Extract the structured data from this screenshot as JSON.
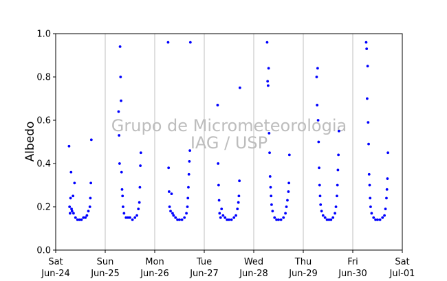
{
  "chart_data": {
    "type": "scatter",
    "ylabel": "Albedo",
    "xlabel": "",
    "ylim": [
      0,
      1.0
    ],
    "yticks": [
      0.0,
      0.2,
      0.4,
      0.6,
      0.8,
      1.0
    ],
    "ytick_labels": [
      "0.0",
      "0.2",
      "0.4",
      "0.6",
      "0.8",
      "1.0"
    ],
    "xlim_days": [
      0,
      7
    ],
    "xticks": [
      {
        "day": 0,
        "line1": "Sat",
        "line2": "Jun-24"
      },
      {
        "day": 1,
        "line1": "Sun",
        "line2": "Jun-25"
      },
      {
        "day": 2,
        "line1": "Mon",
        "line2": "Jun-26"
      },
      {
        "day": 3,
        "line1": "Tue",
        "line2": "Jun-27"
      },
      {
        "day": 4,
        "line1": "Wed",
        "line2": "Jun-28"
      },
      {
        "day": 5,
        "line1": "Thu",
        "line2": "Jun-29"
      },
      {
        "day": 6,
        "line1": "Fri",
        "line2": "Jun-30"
      },
      {
        "day": 7,
        "line1": "Sat",
        "line2": "Jul-01"
      }
    ],
    "grid": "vertical",
    "point_color": "#0000ff",
    "watermark": [
      "Grupo de Micrometeorologia",
      "IAG / USP"
    ],
    "days": [
      {
        "start": 0.27,
        "end": 0.73,
        "points": [
          [
            0.27,
            0.48
          ],
          [
            0.28,
            0.2
          ],
          [
            0.29,
            0.17
          ],
          [
            0.3,
            0.24
          ],
          [
            0.31,
            0.36
          ],
          [
            0.32,
            0.19
          ],
          [
            0.33,
            0.18
          ],
          [
            0.35,
            0.25
          ],
          [
            0.36,
            0.17
          ],
          [
            0.38,
            0.31
          ],
          [
            0.4,
            0.15
          ],
          [
            0.44,
            0.14
          ],
          [
            0.48,
            0.14
          ],
          [
            0.52,
            0.14
          ],
          [
            0.56,
            0.15
          ],
          [
            0.6,
            0.15
          ],
          [
            0.63,
            0.16
          ],
          [
            0.66,
            0.18
          ],
          [
            0.69,
            0.2
          ],
          [
            0.7,
            0.24
          ],
          [
            0.71,
            0.31
          ],
          [
            0.72,
            0.51
          ]
        ]
      },
      {
        "start": 1.27,
        "end": 1.73,
        "points": [
          [
            1.27,
            0.64
          ],
          [
            1.28,
            0.53
          ],
          [
            1.29,
            0.4
          ],
          [
            1.3,
            0.94
          ],
          [
            1.31,
            0.8
          ],
          [
            1.32,
            0.69
          ],
          [
            1.33,
            0.36
          ],
          [
            1.34,
            0.28
          ],
          [
            1.35,
            0.25
          ],
          [
            1.36,
            0.2
          ],
          [
            1.38,
            0.17
          ],
          [
            1.42,
            0.15
          ],
          [
            1.46,
            0.15
          ],
          [
            1.5,
            0.15
          ],
          [
            1.55,
            0.14
          ],
          [
            1.6,
            0.15
          ],
          [
            1.64,
            0.16
          ],
          [
            1.67,
            0.19
          ],
          [
            1.69,
            0.22
          ],
          [
            1.7,
            0.29
          ],
          [
            1.71,
            0.39
          ],
          [
            1.72,
            0.45
          ]
        ]
      },
      {
        "start": 2.27,
        "end": 2.73,
        "points": [
          [
            2.27,
            0.96
          ],
          [
            2.28,
            0.38
          ],
          [
            2.29,
            0.27
          ],
          [
            2.3,
            0.2
          ],
          [
            2.32,
            0.18
          ],
          [
            2.34,
            0.26
          ],
          [
            2.36,
            0.17
          ],
          [
            2.38,
            0.16
          ],
          [
            2.42,
            0.15
          ],
          [
            2.46,
            0.14
          ],
          [
            2.5,
            0.14
          ],
          [
            2.55,
            0.14
          ],
          [
            2.6,
            0.15
          ],
          [
            2.64,
            0.17
          ],
          [
            2.66,
            0.2
          ],
          [
            2.67,
            0.24
          ],
          [
            2.68,
            0.29
          ],
          [
            2.69,
            0.35
          ],
          [
            2.7,
            0.41
          ],
          [
            2.71,
            0.46
          ],
          [
            2.72,
            0.96
          ]
        ]
      },
      {
        "start": 3.27,
        "end": 3.73,
        "points": [
          [
            3.27,
            0.67
          ],
          [
            3.28,
            0.4
          ],
          [
            3.29,
            0.3
          ],
          [
            3.3,
            0.23
          ],
          [
            3.31,
            0.17
          ],
          [
            3.33,
            0.15
          ],
          [
            3.35,
            0.19
          ],
          [
            3.38,
            0.16
          ],
          [
            3.42,
            0.15
          ],
          [
            3.46,
            0.14
          ],
          [
            3.5,
            0.14
          ],
          [
            3.55,
            0.14
          ],
          [
            3.6,
            0.15
          ],
          [
            3.64,
            0.16
          ],
          [
            3.67,
            0.19
          ],
          [
            3.69,
            0.22
          ],
          [
            3.7,
            0.25
          ],
          [
            3.71,
            0.32
          ],
          [
            3.72,
            0.75
          ]
        ]
      },
      {
        "start": 4.27,
        "end": 4.73,
        "points": [
          [
            4.27,
            0.96
          ],
          [
            4.28,
            0.78
          ],
          [
            4.29,
            0.76
          ],
          [
            4.3,
            0.84
          ],
          [
            4.31,
            0.54
          ],
          [
            4.32,
            0.45
          ],
          [
            4.33,
            0.34
          ],
          [
            4.34,
            0.29
          ],
          [
            4.35,
            0.25
          ],
          [
            4.36,
            0.21
          ],
          [
            4.38,
            0.18
          ],
          [
            4.42,
            0.15
          ],
          [
            4.46,
            0.14
          ],
          [
            4.5,
            0.14
          ],
          [
            4.55,
            0.14
          ],
          [
            4.6,
            0.15
          ],
          [
            4.64,
            0.17
          ],
          [
            4.66,
            0.2
          ],
          [
            4.68,
            0.23
          ],
          [
            4.7,
            0.27
          ],
          [
            4.71,
            0.31
          ],
          [
            4.72,
            0.44
          ]
        ]
      },
      {
        "start": 5.27,
        "end": 5.73,
        "points": [
          [
            5.27,
            0.8
          ],
          [
            5.28,
            0.67
          ],
          [
            5.29,
            0.84
          ],
          [
            5.3,
            0.6
          ],
          [
            5.31,
            0.5
          ],
          [
            5.32,
            0.38
          ],
          [
            5.33,
            0.3
          ],
          [
            5.34,
            0.25
          ],
          [
            5.35,
            0.21
          ],
          [
            5.37,
            0.18
          ],
          [
            5.4,
            0.16
          ],
          [
            5.44,
            0.15
          ],
          [
            5.48,
            0.14
          ],
          [
            5.52,
            0.14
          ],
          [
            5.56,
            0.14
          ],
          [
            5.6,
            0.15
          ],
          [
            5.64,
            0.17
          ],
          [
            5.66,
            0.2
          ],
          [
            5.68,
            0.25
          ],
          [
            5.69,
            0.3
          ],
          [
            5.7,
            0.37
          ],
          [
            5.71,
            0.44
          ],
          [
            5.72,
            0.55
          ]
        ]
      },
      {
        "start": 6.27,
        "end": 6.73,
        "points": [
          [
            6.27,
            0.96
          ],
          [
            6.28,
            0.93
          ],
          [
            6.29,
            0.7
          ],
          [
            6.3,
            0.85
          ],
          [
            6.31,
            0.59
          ],
          [
            6.32,
            0.49
          ],
          [
            6.33,
            0.35
          ],
          [
            6.34,
            0.3
          ],
          [
            6.35,
            0.24
          ],
          [
            6.36,
            0.2
          ],
          [
            6.38,
            0.17
          ],
          [
            6.42,
            0.15
          ],
          [
            6.46,
            0.14
          ],
          [
            6.5,
            0.14
          ],
          [
            6.55,
            0.14
          ],
          [
            6.6,
            0.15
          ],
          [
            6.64,
            0.16
          ],
          [
            6.66,
            0.19
          ],
          [
            6.68,
            0.24
          ],
          [
            6.69,
            0.28
          ],
          [
            6.7,
            0.33
          ],
          [
            6.71,
            0.45
          ]
        ]
      }
    ]
  }
}
